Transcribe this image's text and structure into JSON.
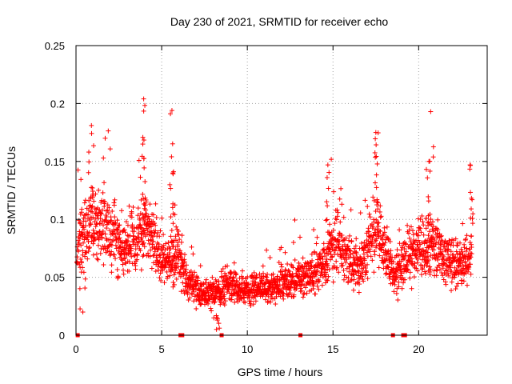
{
  "chart_data": {
    "type": "scatter",
    "title": "Day 230 of 2021, SRMTID for receiver echo",
    "xlabel": "GPS time / hours",
    "ylabel": "SRMTID / TECUs",
    "xlim": [
      0,
      24
    ],
    "ylim": [
      0,
      0.25
    ],
    "x_ticks": [
      0,
      5,
      10,
      15,
      20
    ],
    "x_tick_labels": [
      "0",
      "5",
      "10",
      "15",
      "20"
    ],
    "y_ticks": [
      0,
      0.05,
      0.1,
      0.15,
      0.2,
      0.25
    ],
    "y_tick_labels": [
      "0",
      "0.05",
      "0.1",
      "0.15",
      "0.2",
      "0.25"
    ],
    "grid": true,
    "marker": "plus",
    "color": "#ff0000",
    "series": [
      {
        "name": "SRMTID",
        "trend": [
          [
            0.0,
            0.07
          ],
          [
            0.5,
            0.09
          ],
          [
            1.0,
            0.1
          ],
          [
            1.5,
            0.095
          ],
          [
            2.0,
            0.085
          ],
          [
            2.5,
            0.08
          ],
          [
            3.0,
            0.075
          ],
          [
            3.5,
            0.08
          ],
          [
            4.0,
            0.095
          ],
          [
            4.5,
            0.08
          ],
          [
            5.0,
            0.065
          ],
          [
            5.5,
            0.065
          ],
          [
            6.0,
            0.07
          ],
          [
            6.5,
            0.045
          ],
          [
            7.0,
            0.04
          ],
          [
            7.5,
            0.035
          ],
          [
            8.0,
            0.035
          ],
          [
            8.5,
            0.04
          ],
          [
            9.0,
            0.045
          ],
          [
            9.5,
            0.04
          ],
          [
            10.0,
            0.038
          ],
          [
            10.5,
            0.04
          ],
          [
            11.0,
            0.04
          ],
          [
            11.5,
            0.042
          ],
          [
            12.0,
            0.045
          ],
          [
            12.5,
            0.045
          ],
          [
            13.0,
            0.05
          ],
          [
            13.5,
            0.05
          ],
          [
            14.0,
            0.055
          ],
          [
            14.5,
            0.06
          ],
          [
            15.0,
            0.08
          ],
          [
            15.5,
            0.075
          ],
          [
            16.0,
            0.065
          ],
          [
            16.5,
            0.06
          ],
          [
            17.0,
            0.075
          ],
          [
            17.5,
            0.1
          ],
          [
            18.0,
            0.075
          ],
          [
            18.5,
            0.055
          ],
          [
            19.0,
            0.06
          ],
          [
            19.5,
            0.07
          ],
          [
            20.0,
            0.075
          ],
          [
            20.5,
            0.07
          ],
          [
            21.0,
            0.075
          ],
          [
            21.5,
            0.065
          ],
          [
            22.0,
            0.06
          ],
          [
            22.5,
            0.06
          ],
          [
            23.0,
            0.07
          ]
        ],
        "peaks": [
          {
            "x": 0.9,
            "y": 0.181
          },
          {
            "x": 3.95,
            "y": 0.204
          },
          {
            "x": 3.9,
            "y": 0.165
          },
          {
            "x": 5.6,
            "y": 0.194
          },
          {
            "x": 5.65,
            "y": 0.14
          },
          {
            "x": 14.7,
            "y": 0.147
          },
          {
            "x": 17.5,
            "y": 0.175
          },
          {
            "x": 20.7,
            "y": 0.193
          },
          {
            "x": 20.6,
            "y": 0.15
          },
          {
            "x": 23.0,
            "y": 0.147
          },
          {
            "x": 0.4,
            "y": 0.02
          },
          {
            "x": 8.2,
            "y": 0.005
          }
        ],
        "x_end": 23.1
      }
    ],
    "gap_markers_x": [
      0.1,
      6.1,
      6.2,
      8.5,
      13.1,
      18.5,
      19.1,
      19.2
    ]
  }
}
